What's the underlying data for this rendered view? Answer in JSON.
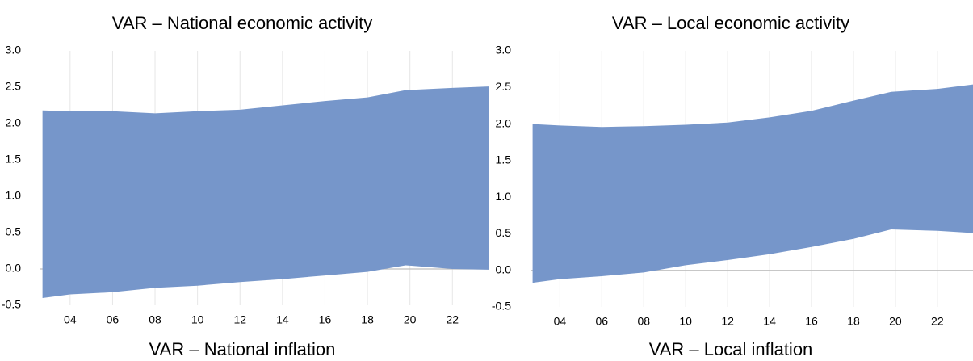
{
  "chart_data": [
    {
      "type": "band",
      "title": "VAR – National economic activity",
      "color": "#7696ca",
      "x": [
        2.7,
        4,
        6,
        8,
        10,
        12,
        14,
        16,
        18,
        19.8,
        22,
        23.7
      ],
      "low": [
        -0.4,
        -0.35,
        -0.32,
        -0.26,
        -0.23,
        -0.18,
        -0.14,
        -0.09,
        -0.04,
        0.05,
        0.0,
        -0.01
      ],
      "high": [
        2.18,
        2.17,
        2.17,
        2.14,
        2.17,
        2.19,
        2.25,
        2.31,
        2.36,
        2.46,
        2.49,
        2.51
      ],
      "xlim": [
        2.6,
        23.7
      ],
      "ylim": [
        -0.5,
        3.0
      ],
      "xticks": [
        {
          "value": 4,
          "label": "04"
        },
        {
          "value": 6,
          "label": "06"
        },
        {
          "value": 8,
          "label": "08"
        },
        10,
        12,
        14,
        16,
        18,
        20,
        22
      ],
      "yticks": [
        {
          "value": -0.5,
          "label": "-0.5"
        },
        {
          "value": 0,
          "label": "0.0"
        },
        0.5,
        {
          "value": 1,
          "label": "1.0"
        },
        1.5,
        {
          "value": 2,
          "label": "2.0"
        },
        2.5,
        {
          "value": 3,
          "label": "3.0"
        }
      ],
      "grid": true
    },
    {
      "type": "band",
      "title": "VAR – Local economic activity",
      "color": "#7696ca",
      "x": [
        2.7,
        4,
        6,
        8,
        10,
        12,
        14,
        16,
        18,
        19.8,
        22,
        23.7
      ],
      "low": [
        -0.17,
        -0.12,
        -0.08,
        -0.03,
        0.07,
        0.14,
        0.22,
        0.32,
        0.43,
        0.56,
        0.54,
        0.51
      ],
      "high": [
        2.0,
        1.98,
        1.96,
        1.97,
        1.99,
        2.02,
        2.09,
        2.18,
        2.32,
        2.44,
        2.48,
        2.54
      ],
      "xlim": [
        2.6,
        23.7
      ],
      "ylim": [
        -0.5,
        3.0
      ],
      "xticks": [
        {
          "value": 4,
          "label": "04"
        },
        {
          "value": 6,
          "label": "06"
        },
        {
          "value": 8,
          "label": "08"
        },
        10,
        12,
        14,
        16,
        18,
        20,
        22
      ],
      "yticks": [
        {
          "value": -0.5,
          "label": "-0.5"
        },
        {
          "value": 0,
          "label": "0.0"
        },
        0.5,
        {
          "value": 1,
          "label": "1.0"
        },
        1.5,
        {
          "value": 2,
          "label": "2.0"
        },
        2.5,
        {
          "value": 3,
          "label": "3.0"
        }
      ],
      "grid": true
    },
    {
      "title": "VAR – National inflation"
    },
    {
      "title": "VAR – Local inflation"
    }
  ]
}
